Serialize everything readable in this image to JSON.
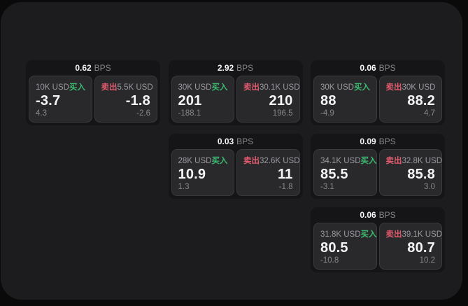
{
  "colors": {
    "page_bg": "#0a0a0a",
    "panel_bg": "#1c1c1e",
    "card_bg": "#151517",
    "tile_bg": "#29292c",
    "tile_border": "#3a3a3d",
    "label": "#9b9b9f",
    "muted": "#87878b",
    "value": "#f5f5f6",
    "buy": "#3cbb70",
    "sell": "#e05b6d"
  },
  "labels": {
    "bps_unit": "BPS",
    "buy": "买入",
    "sell": "卖出"
  },
  "cards": [
    {
      "bps": "0.62",
      "col": 1,
      "row": 1,
      "buy": {
        "amount": "10K USD",
        "value": "-3.7",
        "sub": "4.3"
      },
      "sell": {
        "amount": "5.5K USD",
        "value": "-1.8",
        "sub": "-2.6"
      }
    },
    {
      "bps": "2.92",
      "col": 2,
      "row": 1,
      "buy": {
        "amount": "30K USD",
        "value": "201",
        "sub": "-188.1"
      },
      "sell": {
        "amount": "30.1K USD",
        "value": "210",
        "sub": "196.5"
      }
    },
    {
      "bps": "0.06",
      "col": 3,
      "row": 1,
      "buy": {
        "amount": "30K USD",
        "value": "88",
        "sub": "-4.9"
      },
      "sell": {
        "amount": "30K USD",
        "value": "88.2",
        "sub": "4.7"
      }
    },
    {
      "bps": "0.03",
      "col": 2,
      "row": 2,
      "buy": {
        "amount": "28K USD",
        "value": "10.9",
        "sub": "1.3"
      },
      "sell": {
        "amount": "32.6K USD",
        "value": "11",
        "sub": "-1.8"
      }
    },
    {
      "bps": "0.09",
      "col": 3,
      "row": 2,
      "buy": {
        "amount": "34.1K USD",
        "value": "85.5",
        "sub": "-3.1"
      },
      "sell": {
        "amount": "32.8K USD",
        "value": "85.8",
        "sub": "3.0"
      }
    },
    {
      "bps": "0.06",
      "col": 3,
      "row": 3,
      "buy": {
        "amount": "31.8K USD",
        "value": "80.5",
        "sub": "-10.8"
      },
      "sell": {
        "amount": "39.1K USD",
        "value": "80.7",
        "sub": "10.2"
      }
    }
  ]
}
